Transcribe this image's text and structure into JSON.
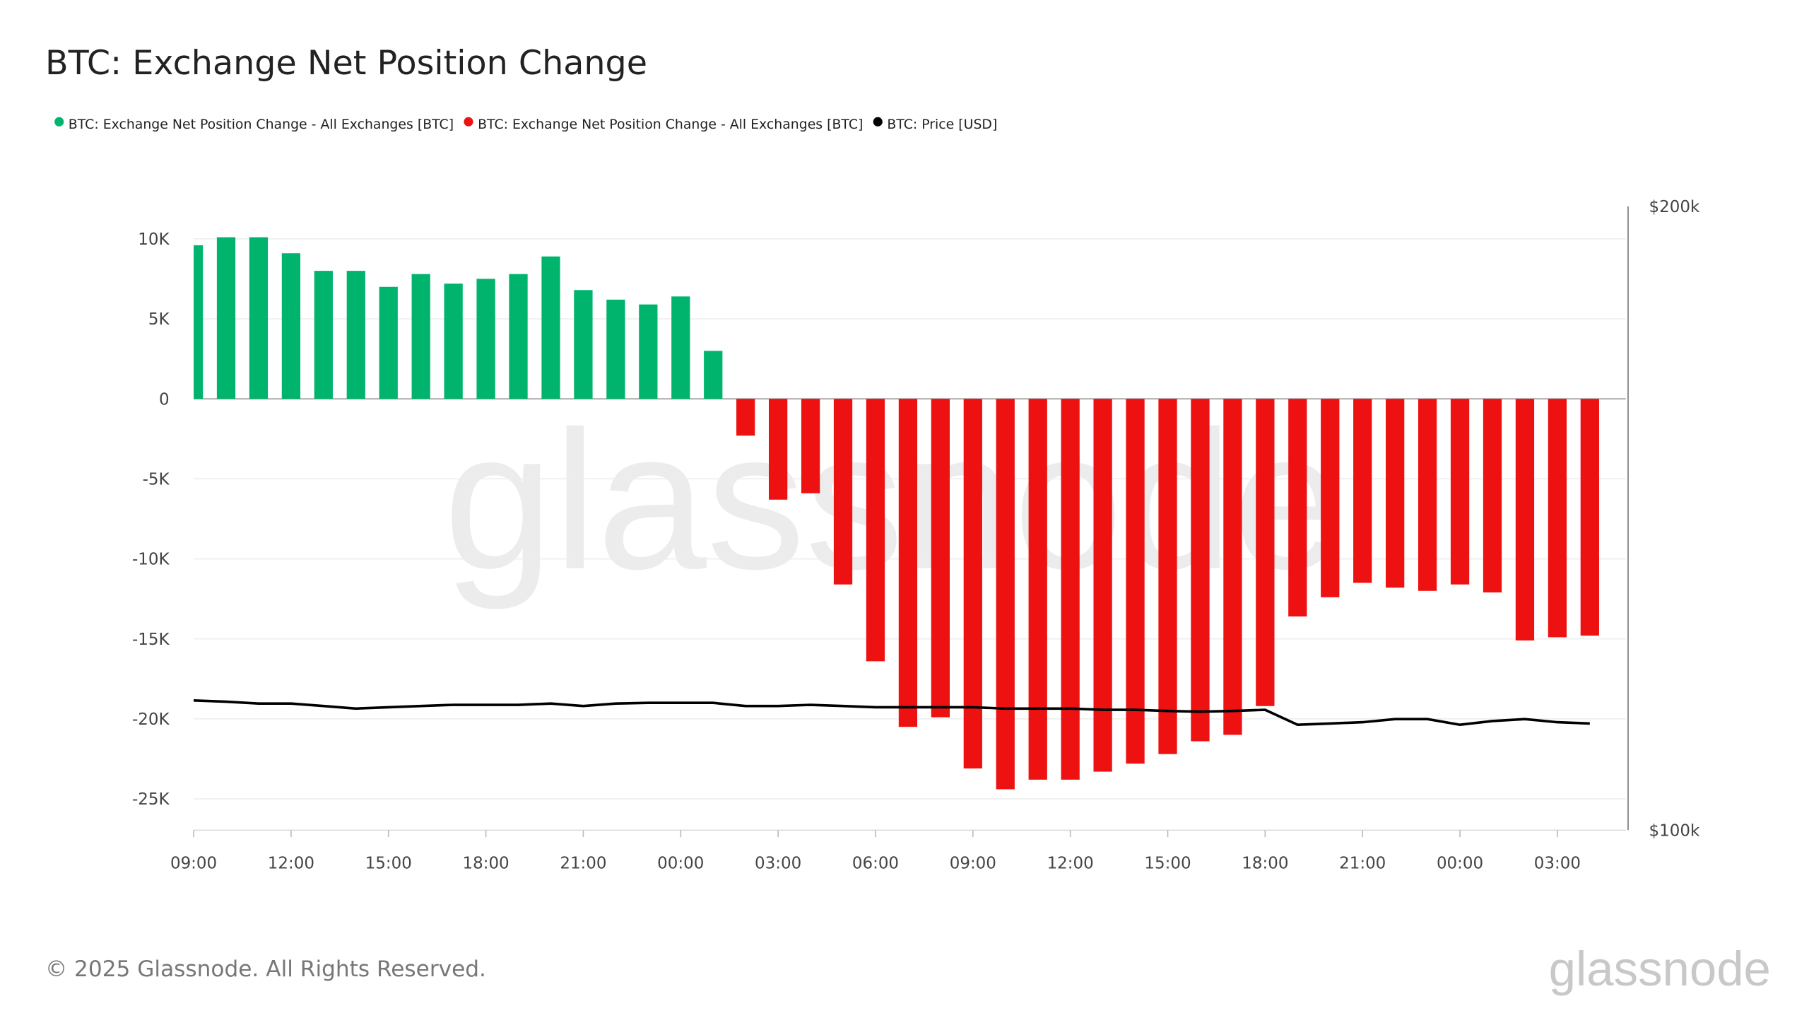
{
  "chart_data": {
    "type": "bar",
    "title": "BTC: Exchange Net Position Change",
    "legend": [
      {
        "name": "BTC: Exchange Net Position Change - All Exchanges [BTC]",
        "color": "#00b46e"
      },
      {
        "name": "BTC: Exchange Net Position Change - All Exchanges [BTC]",
        "color": "#ee1111"
      },
      {
        "name": "BTC: Price [USD]",
        "color": "#000000"
      }
    ],
    "legend_position": "top-left",
    "x": [
      "09:00",
      "10:00",
      "11:00",
      "12:00",
      "13:00",
      "14:00",
      "15:00",
      "16:00",
      "17:00",
      "18:00",
      "19:00",
      "20:00",
      "21:00",
      "22:00",
      "23:00",
      "00:00",
      "01:00",
      "02:00",
      "03:00",
      "04:00",
      "05:00",
      "06:00",
      "07:00",
      "08:00",
      "09:00",
      "10:00",
      "11:00",
      "12:00",
      "13:00",
      "14:00",
      "15:00",
      "16:00",
      "17:00",
      "18:00",
      "19:00",
      "20:00",
      "21:00",
      "22:00",
      "23:00",
      "00:00",
      "01:00",
      "02:00",
      "03:00",
      "04:00"
    ],
    "x_tick_labels": [
      "09:00",
      "12:00",
      "15:00",
      "18:00",
      "21:00",
      "00:00",
      "03:00",
      "06:00",
      "09:00",
      "12:00",
      "15:00",
      "18:00",
      "21:00",
      "00:00",
      "03:00"
    ],
    "series": [
      {
        "name": "BTC: Exchange Net Position Change - All Exchanges [BTC]",
        "type": "bar",
        "axis": "left",
        "values": [
          9600,
          10100,
          10100,
          9100,
          8000,
          8000,
          7000,
          7800,
          7200,
          7500,
          7800,
          8900,
          6800,
          6200,
          5900,
          6400,
          3000,
          -2300,
          -6300,
          -5900,
          -11600,
          -16400,
          -20500,
          -19900,
          -23100,
          -24400,
          -23800,
          -23800,
          -23300,
          -22800,
          -22200,
          -21400,
          -21000,
          -19200,
          -13600,
          -12400,
          -11500,
          -11800,
          -12000,
          -11600,
          -12100,
          -15100,
          -14900,
          -14800
        ]
      },
      {
        "name": "BTC: Price [USD]",
        "type": "line",
        "axis": "right",
        "values": [
          120.8,
          120.6,
          120.3,
          120.3,
          119.9,
          119.5,
          119.7,
          119.9,
          120.1,
          120.1,
          120.1,
          120.3,
          119.9,
          120.3,
          120.4,
          120.4,
          120.4,
          119.9,
          119.9,
          120.1,
          119.9,
          119.7,
          119.7,
          119.7,
          119.7,
          119.5,
          119.5,
          119.5,
          119.3,
          119.3,
          119.1,
          119.0,
          119.1,
          119.3,
          116.9,
          117.1,
          117.3,
          117.8,
          117.8,
          116.9,
          117.5,
          117.8,
          117.3,
          117.1
        ]
      }
    ],
    "left_axis": {
      "ticks": [
        "10K",
        "5K",
        "0",
        "-5K",
        "-10K",
        "-15K",
        "-20K",
        "-25K"
      ],
      "tick_values": [
        10000,
        5000,
        0,
        -5000,
        -10000,
        -15000,
        -20000,
        -25000
      ],
      "ylim": [
        -27000,
        12000
      ]
    },
    "right_axis": {
      "ticks": [
        "$200k",
        "$100k"
      ],
      "tick_values": [
        200,
        100
      ],
      "unit": "k USD",
      "scale": "linear",
      "ylim": [
        100,
        200
      ]
    },
    "grid": true,
    "positive_color": "#00b46e",
    "negative_color": "#ee1111",
    "line_color": "#000000"
  },
  "footer": {
    "copyright": "© 2025 Glassnode. All Rights Reserved.",
    "logo": "glassnode"
  },
  "watermark": "glassnode"
}
